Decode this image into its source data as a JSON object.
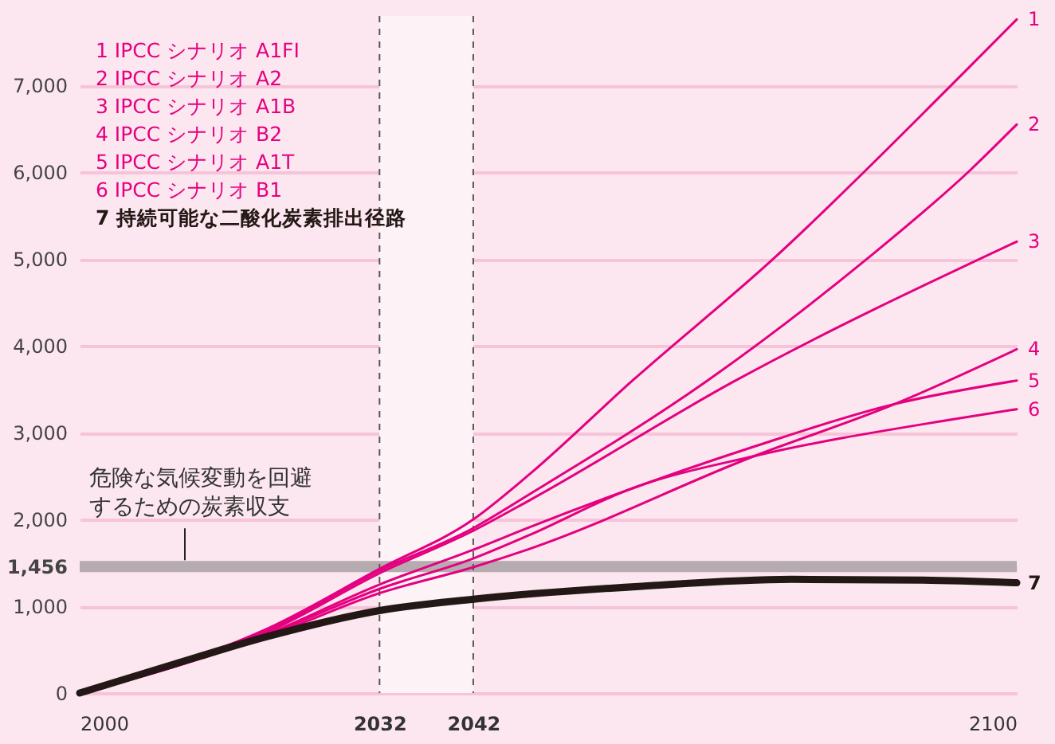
{
  "chart_data": {
    "type": "line",
    "xlim": [
      2000,
      2100
    ],
    "xticks": [
      {
        "value": 2000,
        "label": "2000"
      },
      {
        "value": 2032,
        "label": "2032"
      },
      {
        "value": 2042,
        "label": "2042"
      },
      {
        "value": 2100,
        "label": "2100"
      }
    ],
    "ylim": [
      0,
      7800
    ],
    "yticks": [
      0,
      {
        "value": 1000,
        "label": "1,000"
      },
      {
        "value": 1456,
        "label": "1,456"
      },
      {
        "value": 2000,
        "label": "2,000"
      },
      {
        "value": 3000,
        "label": "3,000"
      },
      {
        "value": 4000,
        "label": "4,000"
      },
      {
        "value": 5000,
        "label": "5,000"
      },
      {
        "value": 6000,
        "label": "6,000"
      },
      {
        "value": 7000,
        "label": "7,000"
      }
    ],
    "grid": "y",
    "series": [
      {
        "name": "1",
        "color": "#e4007f",
        "x": [
          2000,
          2010,
          2020,
          2032,
          2042,
          2048,
          2059,
          2074,
          2093,
          2100
        ],
        "values": [
          0,
          320,
          740,
          1430,
          2000,
          2520,
          3600,
          5000,
          7000,
          7760
        ]
      },
      {
        "name": "2",
        "color": "#e4007f",
        "x": [
          2000,
          2010,
          2020,
          2032,
          2042,
          2048,
          2067,
          2084,
          2095,
          2100
        ],
        "values": [
          0,
          310,
          720,
          1410,
          1900,
          2290,
          3600,
          5000,
          6020,
          6550
        ]
      },
      {
        "name": "3",
        "color": "#e4007f",
        "x": [
          2000,
          2010,
          2020,
          2032,
          2042,
          2048,
          2070,
          2100
        ],
        "values": [
          0,
          310,
          700,
          1380,
          1870,
          2220,
          3600,
          5200
        ]
      },
      {
        "name": "4",
        "color": "#e4007f",
        "x": [
          2000,
          2010,
          2020,
          2032,
          2042,
          2048,
          2072,
          2087,
          2100
        ],
        "values": [
          0,
          300,
          650,
          1150,
          1450,
          1660,
          2730,
          3330,
          3960
        ]
      },
      {
        "name": "5",
        "color": "#e4007f",
        "x": [
          2000,
          2010,
          2020,
          2032,
          2042,
          2048,
          2072,
          2087,
          2100
        ],
        "values": [
          0,
          300,
          680,
          1250,
          1650,
          1910,
          2840,
          3330,
          3600
        ]
      },
      {
        "name": "6",
        "color": "#e4007f",
        "x": [
          2000,
          2010,
          2020,
          2032,
          2042,
          2048,
          2059,
          2072,
          2093,
          2100
        ],
        "values": [
          0,
          300,
          670,
          1200,
          1550,
          1820,
          2360,
          2730,
          3150,
          3270
        ]
      },
      {
        "name": "7",
        "color": "#231815",
        "x": [
          2000,
          2010,
          2020,
          2032,
          2042,
          2060,
          2076,
          2090,
          2100
        ],
        "values": [
          0,
          330,
          650,
          950,
          1080,
          1230,
          1310,
          1300,
          1270
        ]
      }
    ],
    "ref_lines": [
      {
        "axis": "y",
        "value": 1456,
        "label": "危険な気候変動を回避するための炭素収支",
        "color": "#b5abb0"
      },
      {
        "axis": "x",
        "value": 2032,
        "line_style": "dashed",
        "color": "#555555"
      },
      {
        "axis": "x",
        "value": 2042,
        "line_style": "dashed",
        "color": "#555555"
      }
    ],
    "bands": [
      {
        "axis": "x",
        "from": 2032,
        "to": 2042,
        "color": "#fdf3f7"
      }
    ],
    "annotations": [
      "1 IPCC シナリオ A1FI",
      "2 IPCC シナリオ A2",
      "3 IPCC シナリオ A1B",
      "4 IPCC シナリオ B2",
      "5 IPCC シナリオ A1T",
      "6 IPCC シナリオ B1",
      "7 持続可能な二酸化炭素排出径路"
    ]
  }
}
